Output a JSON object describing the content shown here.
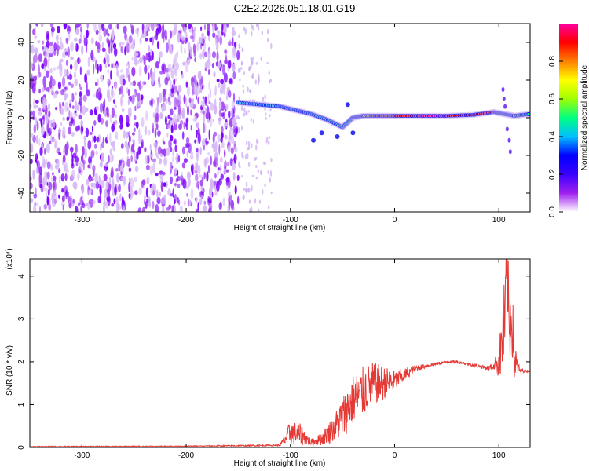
{
  "figure_title": "C2E2.2026.051.18.01.G19",
  "chart_data": [
    {
      "type": "heatmap",
      "name": "spectrogram",
      "xlabel": "Height of straight line (km)",
      "ylabel": "Frequency (Hz)",
      "xlim": [
        -350,
        130
      ],
      "ylim": [
        -50,
        50
      ],
      "xticks": [
        -300,
        -200,
        -100,
        0,
        100
      ],
      "yticks": [
        -40,
        -20,
        0,
        20,
        40
      ],
      "colorbar": {
        "label": "Normalized spectral amplitude",
        "range": [
          0,
          1
        ],
        "ticks": [
          "0.0",
          "0.2",
          "0.4",
          "0.6",
          "0.8"
        ],
        "tick_values": [
          0.0,
          0.2,
          0.4,
          0.6,
          0.8
        ],
        "colormap": [
          "#ffffff",
          "#a020f0",
          "#3b00ff",
          "#0000ff",
          "#00c0ff",
          "#00ff80",
          "#a0ff00",
          "#ffff00",
          "#ff8000",
          "#ff0000",
          "#ff00a0"
        ]
      },
      "noise_region_x": [
        -350,
        -150
      ],
      "sparse_region_x": [
        -150,
        -118
      ],
      "signal_track": [
        {
          "x": -150,
          "freq": 8,
          "amp": 0.5
        },
        {
          "x": -130,
          "freq": 7,
          "amp": 0.45
        },
        {
          "x": -110,
          "freq": 6,
          "amp": 0.4
        },
        {
          "x": -95,
          "freq": 4,
          "amp": 0.45
        },
        {
          "x": -80,
          "freq": 2,
          "amp": 0.5
        },
        {
          "x": -65,
          "freq": -1,
          "amp": 0.5
        },
        {
          "x": -50,
          "freq": -5,
          "amp": 0.5
        },
        {
          "x": -40,
          "freq": 0,
          "amp": 0.6
        },
        {
          "x": -30,
          "freq": 1,
          "amp": 0.7
        },
        {
          "x": -15,
          "freq": 1,
          "amp": 0.85
        },
        {
          "x": 0,
          "freq": 1,
          "amp": 0.9
        },
        {
          "x": 25,
          "freq": 1,
          "amp": 1.0
        },
        {
          "x": 50,
          "freq": 1,
          "amp": 1.0
        },
        {
          "x": 75,
          "freq": 1.5,
          "amp": 0.95
        },
        {
          "x": 95,
          "freq": 3,
          "amp": 0.9
        },
        {
          "x": 105,
          "freq": 2,
          "amp": 0.6
        },
        {
          "x": 115,
          "freq": 1,
          "amp": 0.7
        },
        {
          "x": 130,
          "freq": 2,
          "amp": 0.5
        }
      ]
    },
    {
      "type": "line",
      "name": "snr",
      "xlabel": "Height of straight line (km)",
      "ylabel": "SNR (10 * v/v)",
      "y_multiplier": "(x10⁴)",
      "xlim": [
        -350,
        130
      ],
      "ylim": [
        0,
        4.4
      ],
      "xticks": [
        -300,
        -200,
        -100,
        0,
        100
      ],
      "yticks": [
        0,
        1,
        2,
        3,
        4
      ],
      "color": "#e53935",
      "envelope_x": [
        -350,
        -200,
        -110,
        -100,
        -90,
        -80,
        -70,
        -60,
        -50,
        -40,
        -30,
        -20,
        -10,
        0,
        10,
        20,
        30,
        40,
        50,
        60,
        70,
        80,
        90,
        95,
        100,
        103,
        106,
        108,
        110,
        112,
        115,
        120,
        130
      ],
      "envelope_y": [
        0.02,
        0.03,
        0.05,
        0.35,
        0.3,
        0.12,
        0.2,
        0.4,
        0.7,
        1.1,
        1.3,
        1.5,
        1.5,
        1.55,
        1.7,
        1.85,
        1.9,
        1.95,
        2.0,
        2.0,
        1.95,
        1.9,
        1.85,
        1.9,
        2.0,
        2.4,
        3.0,
        4.3,
        2.6,
        3.3,
        2.0,
        1.8,
        1.78
      ],
      "noise_amplitude": [
        0.01,
        0.01,
        0.02,
        0.3,
        0.25,
        0.08,
        0.15,
        0.3,
        0.5,
        0.6,
        0.6,
        0.5,
        0.4,
        0.25,
        0.15,
        0.08,
        0.05,
        0.04,
        0.03,
        0.03,
        0.03,
        0.04,
        0.06,
        0.08,
        0.4,
        0.8,
        1.2,
        1.0,
        1.0,
        1.0,
        0.5,
        0.05,
        0.02
      ]
    }
  ]
}
